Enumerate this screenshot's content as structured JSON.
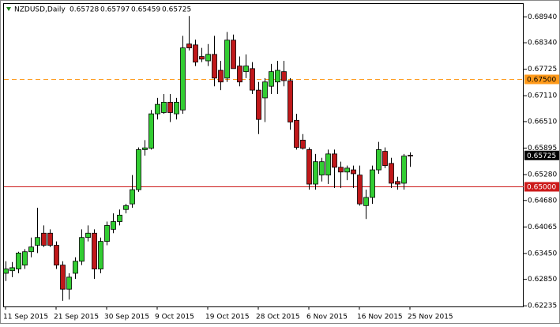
{
  "chart_data": {
    "type": "candlestick",
    "title": "NZDUSD,Daily",
    "quote_labels": [
      "0.65728",
      "0.65797",
      "0.65459",
      "0.65725"
    ],
    "open": [
      0.6299,
      0.6305,
      0.6309,
      0.6318,
      0.6349,
      0.6364,
      0.6392,
      0.6392,
      0.6364,
      0.6318,
      0.6262,
      0.6299,
      0.6327,
      0.6382,
      0.6392,
      0.6309,
      0.6373,
      0.6401,
      0.6419,
      0.6447,
      0.646,
      0.6493,
      0.6586,
      0.6589,
      0.6669,
      0.6672,
      0.6696,
      0.6669,
      0.6678,
      0.6831,
      0.6829,
      0.6802,
      0.6792,
      0.6807,
      0.677,
      0.6752,
      0.684,
      0.678,
      0.6767,
      0.6774,
      0.6724,
      0.6706,
      0.6733,
      0.6743,
      0.6767,
      0.6746,
      0.6654,
      0.6608,
      0.6586,
      0.6506,
      0.6527,
      0.6527,
      0.6576,
      0.6545,
      0.6534,
      0.6539,
      0.6527,
      0.6456,
      0.6475,
      0.6539,
      0.6582,
      0.6554,
      0.6512,
      0.6508,
      0.65728
    ],
    "high": [
      0.6327,
      0.6325,
      0.6349,
      0.6355,
      0.6382,
      0.6451,
      0.641,
      0.6401,
      0.6373,
      0.6327,
      0.6299,
      0.6336,
      0.6401,
      0.641,
      0.6401,
      0.6382,
      0.6419,
      0.6438,
      0.6447,
      0.646,
      0.6527,
      0.6591,
      0.6608,
      0.6678,
      0.6706,
      0.6715,
      0.6715,
      0.6706,
      0.685,
      0.6896,
      0.6841,
      0.6822,
      0.6831,
      0.685,
      0.6792,
      0.6859,
      0.6853,
      0.6802,
      0.6807,
      0.6789,
      0.6743,
      0.6752,
      0.6785,
      0.6792,
      0.6792,
      0.6752,
      0.6669,
      0.6622,
      0.6591,
      0.6576,
      0.6567,
      0.6586,
      0.6586,
      0.6558,
      0.6549,
      0.6549,
      0.6549,
      0.6493,
      0.6549,
      0.6604,
      0.6591,
      0.6567,
      0.6523,
      0.6576,
      0.65797
    ],
    "low": [
      0.6281,
      0.629,
      0.6299,
      0.6309,
      0.6336,
      0.6346,
      0.636,
      0.636,
      0.6309,
      0.6235,
      0.6238,
      0.6286,
      0.6318,
      0.6373,
      0.6286,
      0.6299,
      0.6364,
      0.6392,
      0.641,
      0.6438,
      0.6451,
      0.6488,
      0.6572,
      0.6586,
      0.6656,
      0.6669,
      0.665,
      0.6656,
      0.6669,
      0.6816,
      0.678,
      0.6789,
      0.678,
      0.6733,
      0.6724,
      0.6743,
      0.678,
      0.6733,
      0.6752,
      0.6715,
      0.6622,
      0.665,
      0.6715,
      0.6715,
      0.6733,
      0.6632,
      0.6586,
      0.6586,
      0.6493,
      0.6493,
      0.6512,
      0.6506,
      0.6497,
      0.6497,
      0.6515,
      0.6497,
      0.6456,
      0.6425,
      0.646,
      0.653,
      0.6543,
      0.6497,
      0.6493,
      0.6493,
      0.65459
    ],
    "close": [
      0.6309,
      0.6312,
      0.6346,
      0.6349,
      0.636,
      0.6382,
      0.6364,
      0.6364,
      0.6318,
      0.6262,
      0.629,
      0.6327,
      0.6382,
      0.6392,
      0.6309,
      0.6373,
      0.641,
      0.6419,
      0.6434,
      0.6456,
      0.6493,
      0.6586,
      0.659,
      0.6669,
      0.6691,
      0.6696,
      0.6672,
      0.6696,
      0.6822,
      0.6822,
      0.6789,
      0.6796,
      0.6807,
      0.6752,
      0.6743,
      0.684,
      0.6774,
      0.6743,
      0.678,
      0.6724,
      0.6656,
      0.6743,
      0.6767,
      0.677,
      0.6746,
      0.665,
      0.6591,
      0.6589,
      0.6506,
      0.6558,
      0.6558,
      0.6576,
      0.6545,
      0.6534,
      0.6543,
      0.653,
      0.646,
      0.6475,
      0.6539,
      0.6586,
      0.6549,
      0.6508,
      0.6506,
      0.6571,
      0.65725
    ],
    "up_color": "#32cd32",
    "down_color": "#c0181a",
    "xticks": [
      {
        "value": 0,
        "label": "11 Sep 2015"
      },
      {
        "value": 8,
        "label": "21 Sep 2015"
      },
      {
        "value": 16,
        "label": "30 Sep 2015"
      },
      {
        "value": 24,
        "label": "9 Oct 2015"
      },
      {
        "value": 32,
        "label": "19 Oct 2015"
      },
      {
        "value": 40,
        "label": "28 Oct 2015"
      },
      {
        "value": 48,
        "label": "6 Nov 2015"
      },
      {
        "value": 56,
        "label": "16 Nov 2015"
      },
      {
        "value": 64,
        "label": "25 Nov 2015"
      }
    ],
    "ylim": [
      0.6222,
      0.6924
    ],
    "yticks": [
      {
        "value": 0.6894,
        "label": "0.68940"
      },
      {
        "value": 0.6834,
        "label": "0.68340"
      },
      {
        "value": 0.67725,
        "label": "0.67725"
      },
      {
        "value": 0.6711,
        "label": "0.67110"
      },
      {
        "value": 0.6651,
        "label": "0.66510"
      },
      {
        "value": 0.65895,
        "label": "0.65895"
      },
      {
        "value": 0.6528,
        "label": "0.65280"
      },
      {
        "value": 0.6468,
        "label": "0.64680"
      },
      {
        "value": 0.64065,
        "label": "0.64065"
      },
      {
        "value": 0.6345,
        "label": "0.63450"
      },
      {
        "value": 0.6285,
        "label": "0.62850"
      },
      {
        "value": 0.62235,
        "label": "0.62235"
      }
    ],
    "levels": [
      {
        "value": 0.675,
        "label": "0.67500",
        "color": "#ff9a1a",
        "dashed": true
      },
      {
        "value": 0.65,
        "label": "0.65000",
        "color": "#cc1a1a",
        "dashed": false
      }
    ],
    "last_price": {
      "value": 0.65725,
      "label": "0.65725"
    }
  }
}
